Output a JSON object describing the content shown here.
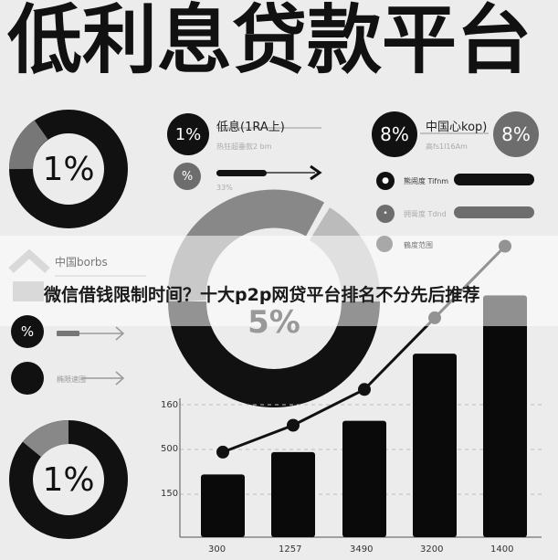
{
  "title": "低利息贷款平台",
  "banner": "微信借钱限制时间？十大p2p网贷平台排名不分先后推荐",
  "donut_top_left": {
    "label": "1%"
  },
  "donut_bottom_left": {
    "label": "1%"
  },
  "donut_center": {
    "label": "5%"
  },
  "left_panel": {
    "item1": {
      "badge": "1%",
      "title": "低息(1RA上)",
      "sub": "热狂超垂款2 bm"
    },
    "item2": {
      "badge": "%",
      "sub": "33%"
    }
  },
  "right_panel": {
    "badge_left": "8%",
    "badge_right": "8%",
    "title": "中国心kop)",
    "sub": "高fs1I16Am",
    "rows": [
      {
        "label": "熊闹度 Tifnm"
      },
      {
        "label": "拥膏度 Tdnd"
      },
      {
        "label": "鶴度范围"
      }
    ]
  },
  "mid_left": {
    "title": "中国borbs",
    "row1_badge": "%",
    "row2_label": "椭限速围"
  },
  "colors": {
    "dark": "#111111",
    "mid": "#6d6d6d",
    "light": "#a8a8a8",
    "bg": "#ececec"
  },
  "chart_data": {
    "type": "bar",
    "categories": [
      "300",
      "1257",
      "3490",
      "3200",
      "1400"
    ],
    "y_tick_labels": [
      "160",
      "500",
      "150"
    ],
    "values": [
      1.4,
      1.9,
      2.6,
      4.1,
      5.4
    ],
    "line_values": [
      1.9,
      2.5,
      3.3,
      4.9,
      6.5
    ],
    "grid": true
  }
}
